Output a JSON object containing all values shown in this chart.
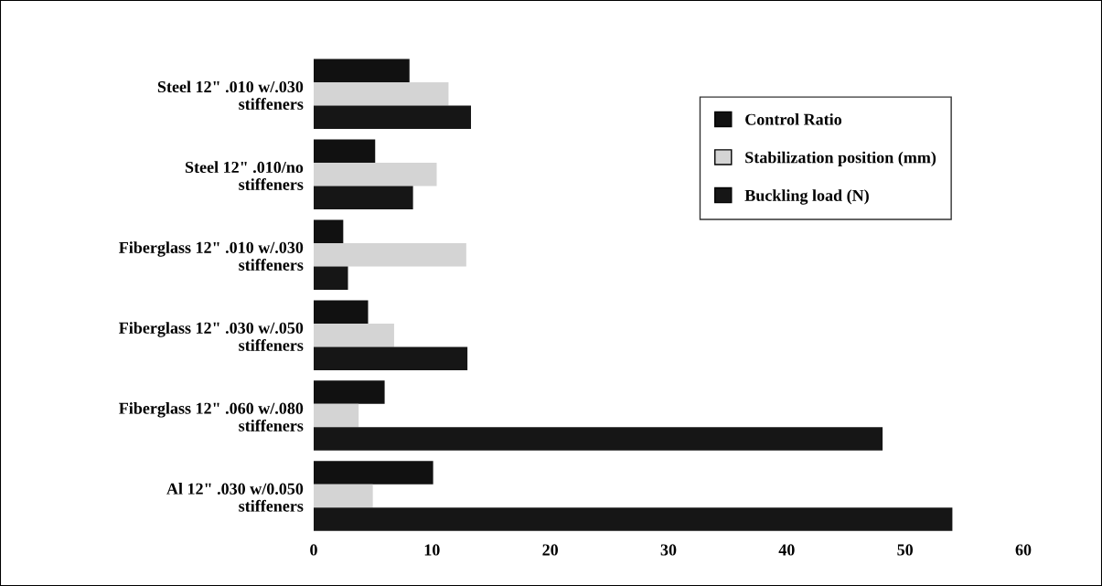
{
  "chart_data": {
    "type": "bar",
    "orientation": "horizontal",
    "categories": [
      "Steel 12\" .010 w/.030\nstiffeners",
      "Steel 12\" .010/no\nstiffeners",
      "Fiberglass 12\" .010 w/.030\nstiffeners",
      "Fiberglass 12\" .030 w/.050\nstiffeners",
      "Fiberglass 12\" .060 w/.080\nstiffeners",
      "Al 12\" .030 w/0.050\nstiffeners"
    ],
    "series": [
      {
        "name": "Control Ratio",
        "color": "#111111",
        "values": [
          8.1,
          5.2,
          2.5,
          4.6,
          6.0,
          10.1
        ]
      },
      {
        "name": "Stabilization position (mm)",
        "color": "#d4d4d4",
        "values": [
          11.4,
          10.4,
          12.9,
          6.8,
          3.8,
          5.0
        ]
      },
      {
        "name": "Buckling load (N)",
        "color": "#161616",
        "values": [
          13.3,
          8.4,
          2.9,
          13.0,
          48.1,
          54.0
        ]
      }
    ],
    "xlim": [
      0,
      60
    ],
    "xticks": [
      0,
      10,
      20,
      30,
      40,
      50,
      60
    ],
    "grid": false,
    "legend": "top right"
  }
}
